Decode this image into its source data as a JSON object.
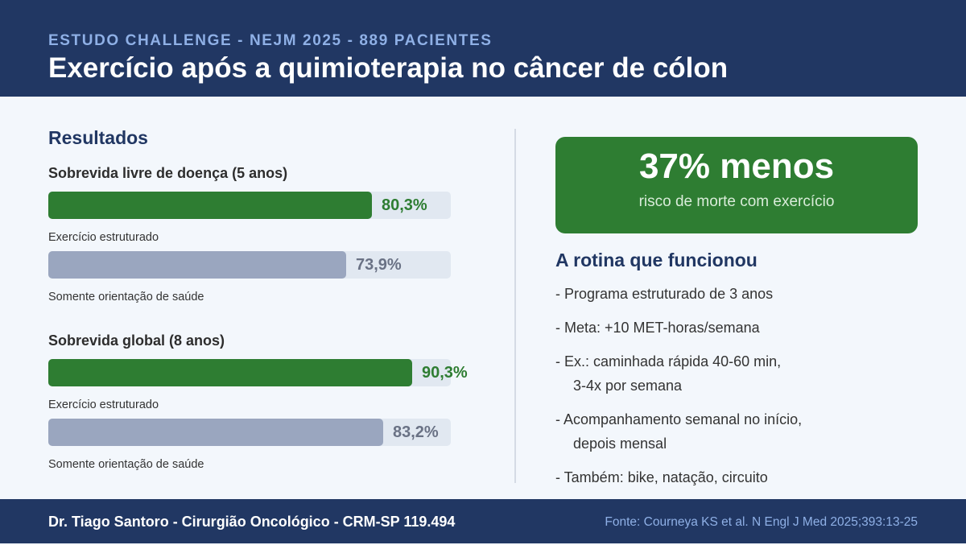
{
  "header": {
    "kicker": "ESTUDO CHALLENGE - NEJM 2025 - 889 PACIENTES",
    "title": "Exercício após a quimioterapia no câncer de cólon"
  },
  "colors": {
    "header_bg": "#213763",
    "exercise_bar": "#2e7d32",
    "control_bar": "#9aa6bf",
    "track": "#e1e8f1"
  },
  "results": {
    "title": "Resultados"
  },
  "chart_data": {
    "type": "bar",
    "orientation": "horizontal",
    "scale_max": 100,
    "unit": "%",
    "groups": [
      {
        "title": "Sobrevida livre de doença (5 anos)",
        "bars": [
          {
            "label": "Exercício estruturado",
            "value": 80.3,
            "value_label": "80,3%",
            "kind": "exercise"
          },
          {
            "label": "Somente orientação de saúde",
            "value": 73.9,
            "value_label": "73,9%",
            "kind": "control"
          }
        ]
      },
      {
        "title": "Sobrevida global (8 anos)",
        "bars": [
          {
            "label": "Exercício estruturado",
            "value": 90.3,
            "value_label": "90,3%",
            "kind": "exercise"
          },
          {
            "label": "Somente orientação de saúde",
            "value": 83.2,
            "value_label": "83,2%",
            "kind": "control"
          }
        ]
      }
    ]
  },
  "highlight": {
    "big": "37% menos",
    "sub": "risco de morte com exercício"
  },
  "routine": {
    "title": "A rotina que funcionou",
    "items": [
      {
        "line1": "- Programa estruturado de 3 anos",
        "line2": ""
      },
      {
        "line1": "- Meta: +10 MET-horas/semana",
        "line2": ""
      },
      {
        "line1": "- Ex.: caminhada rápida 40-60 min,",
        "line2": "3-4x por semana"
      },
      {
        "line1": "- Acompanhamento semanal no início,",
        "line2": "depois mensal"
      },
      {
        "line1": "- Também: bike, natação, circuito",
        "line2": ""
      }
    ]
  },
  "footer": {
    "author": "Dr. Tiago Santoro - Cirurgião Oncológico - CRM-SP 119.494",
    "source": "Fonte: Courneya KS et al. N Engl J Med 2025;393:13-25"
  }
}
